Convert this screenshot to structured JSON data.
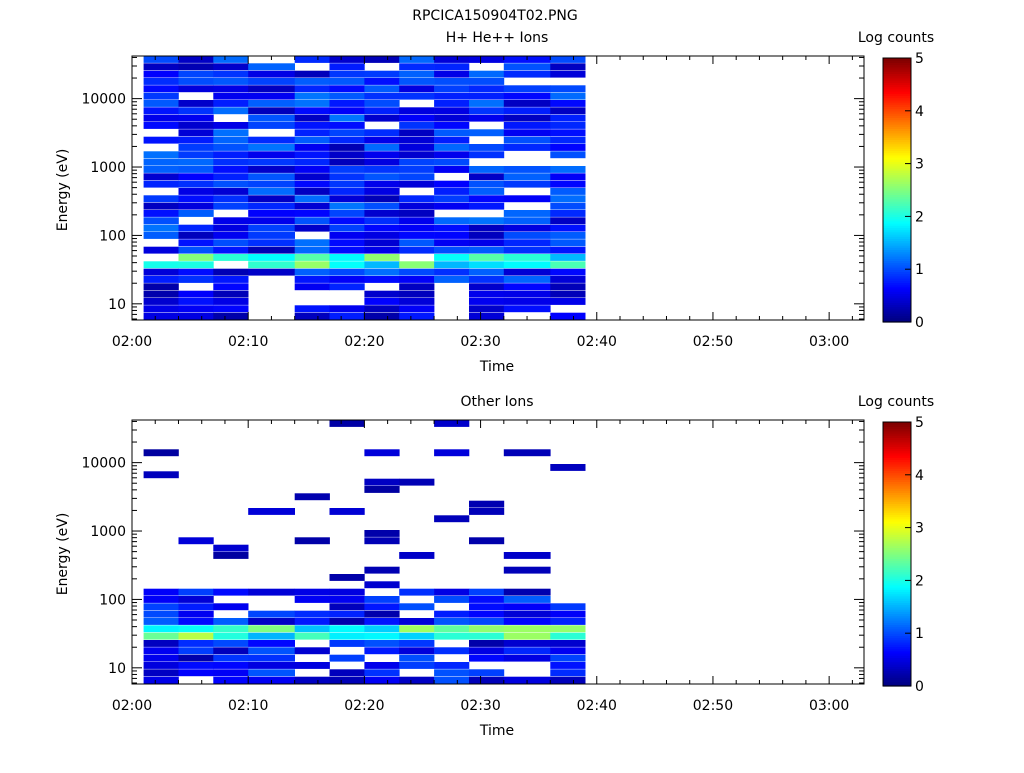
{
  "figure_title": "RPCICA150904T02.PNG",
  "chart_data": [
    {
      "type": "heatmap",
      "title": "H+ He++ Ions",
      "xlabel": "Time",
      "ylabel": "Energy (eV)",
      "x_ticks": [
        "02:00",
        "02:10",
        "02:20",
        "02:30",
        "02:40",
        "02:50",
        "03:00"
      ],
      "xlim": [
        "02:00",
        "03:03"
      ],
      "y_scale": "log",
      "y_ticks": [
        "10",
        "100",
        "1000",
        "10000"
      ],
      "ylim": [
        5.8,
        42000
      ],
      "colorbar": {
        "label": "Log counts",
        "range": [
          0,
          5
        ],
        "ticks": [
          "0",
          "1",
          "2",
          "3",
          "4",
          "5"
        ]
      },
      "time_bins": [
        "02:01",
        "02:04",
        "02:07",
        "02:10",
        "02:14",
        "02:17",
        "02:20",
        "02:23",
        "02:26",
        "02:29",
        "02:32",
        "02:36"
      ],
      "bins_per_decade": 10,
      "grid": false,
      "data_end": "02:39",
      "dominant_log_counts": [
        0.3,
        1.2
      ],
      "peak_band": {
        "energy_eV_range": [
          30,
          50
        ],
        "log_counts_max": 2.8,
        "at": [
          "02:17",
          "02:20",
          "02:26",
          "02:30"
        ]
      }
    },
    {
      "type": "heatmap",
      "title": "Other Ions",
      "xlabel": "Time",
      "ylabel": "Energy (eV)",
      "x_ticks": [
        "02:00",
        "02:10",
        "02:20",
        "02:30",
        "02:40",
        "02:50",
        "03:00"
      ],
      "xlim": [
        "02:00",
        "03:03"
      ],
      "y_scale": "log",
      "y_ticks": [
        "10",
        "100",
        "1000",
        "10000"
      ],
      "ylim": [
        5.8,
        42000
      ],
      "colorbar": {
        "label": "Log counts",
        "range": [
          0,
          5
        ],
        "ticks": [
          "0",
          "1",
          "2",
          "3",
          "4",
          "5"
        ]
      },
      "time_bins": [
        "02:01",
        "02:04",
        "02:07",
        "02:10",
        "02:14",
        "02:17",
        "02:20",
        "02:23",
        "02:26",
        "02:29",
        "02:32",
        "02:36"
      ],
      "grid": false,
      "data_end": "02:39",
      "peak_band": {
        "energy_eV_range": [
          25,
          45
        ],
        "log_counts_max": 2.8
      },
      "sparse_lines_above_eV": 150
    }
  ]
}
